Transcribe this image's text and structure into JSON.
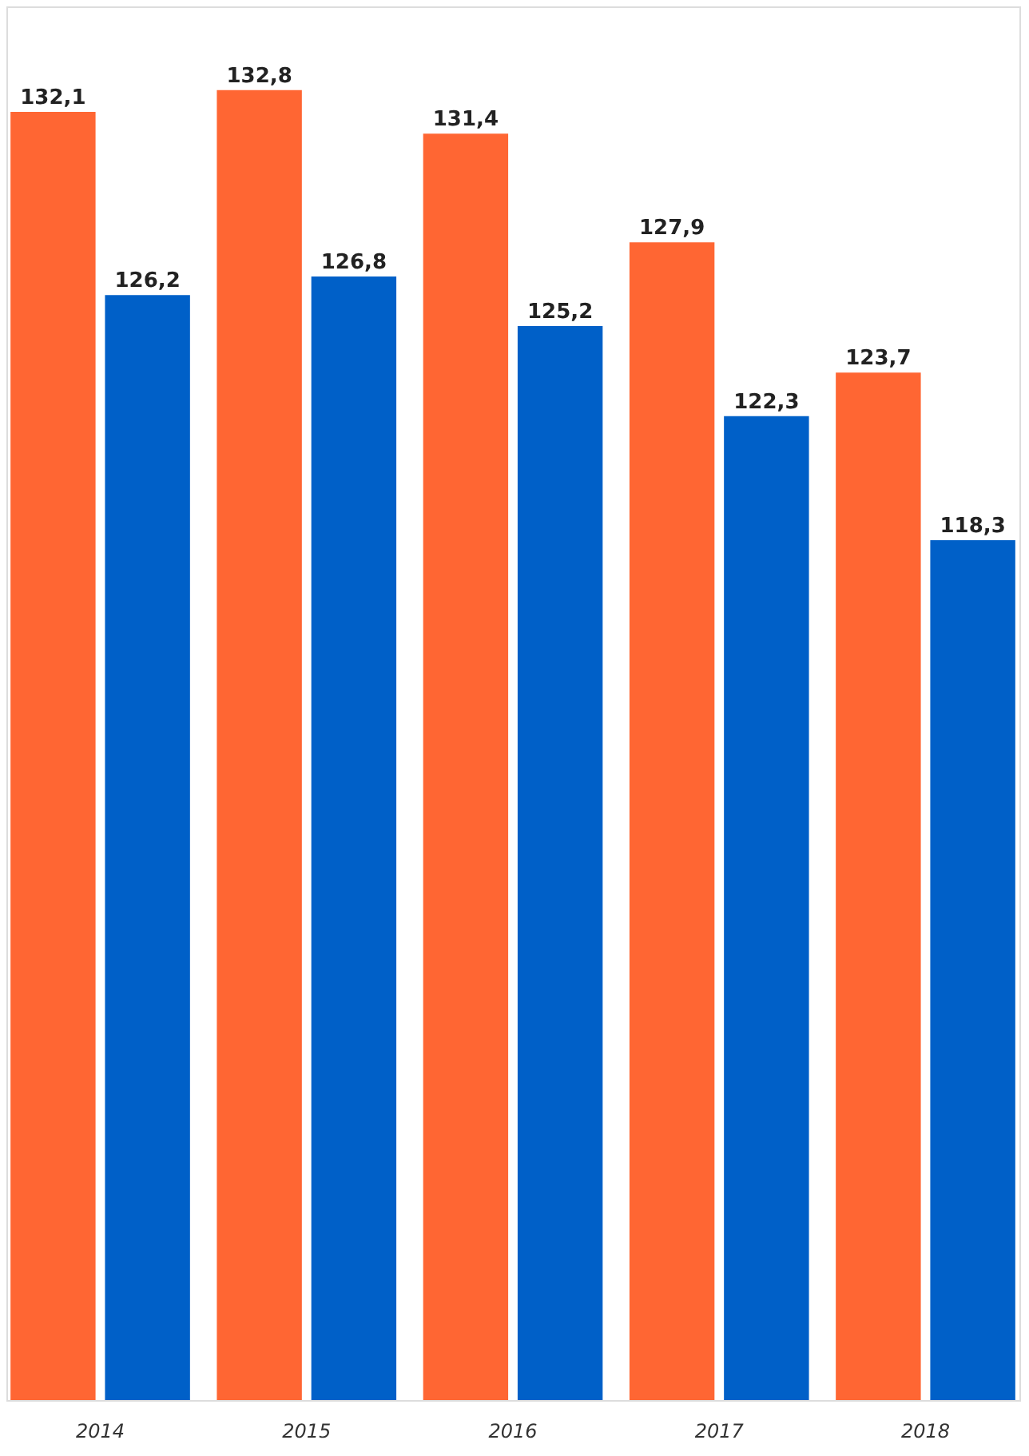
{
  "chart_data": {
    "type": "bar",
    "categories": [
      "2014",
      "2015",
      "2016",
      "2017",
      "2018"
    ],
    "series": [
      {
        "color": "#ff6633",
        "values": [
          132.1,
          132.8,
          131.4,
          127.9,
          123.7
        ],
        "value_labels": [
          "132,1",
          "132,8",
          "131,4",
          "127,9",
          "123,7"
        ]
      },
      {
        "color": "#0060c8",
        "values": [
          126.2,
          126.8,
          125.2,
          122.3,
          118.3
        ],
        "value_labels": [
          "126,2",
          "126,8",
          "125,2",
          "122,3",
          "118,3"
        ]
      }
    ],
    "ylim": [
      90.6,
      135.5
    ],
    "tick_labels": "x",
    "grid": false,
    "legend": false
  }
}
